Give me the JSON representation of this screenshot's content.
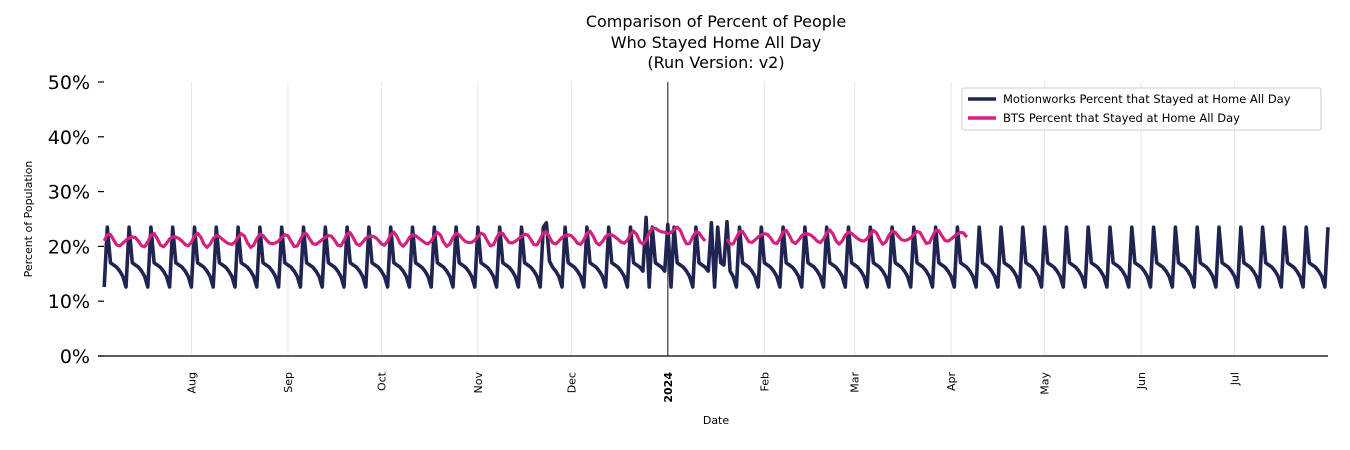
{
  "chart_data": {
    "type": "line",
    "title_lines": [
      "Comparison of Percent of People",
      "Who Stayed Home All Day",
      "(Run Version: v2)"
    ],
    "xlabel": "Date",
    "ylabel": "Percent of Population",
    "ylim": [
      0,
      50
    ],
    "yticks": [
      "0%",
      "10%",
      "20%",
      "30%",
      "40%",
      "50%"
    ],
    "xlim": [
      "2023-07-02",
      "2024-07-31"
    ],
    "xticks": [
      {
        "date": "2023-08-01",
        "label": "Aug",
        "bold": false
      },
      {
        "date": "2023-09-01",
        "label": "Sep",
        "bold": false
      },
      {
        "date": "2023-10-01",
        "label": "Oct",
        "bold": false
      },
      {
        "date": "2023-11-01",
        "label": "Nov",
        "bold": false
      },
      {
        "date": "2023-12-01",
        "label": "Dec",
        "bold": false
      },
      {
        "date": "2024-01-01",
        "label": "2024",
        "bold": true
      },
      {
        "date": "2024-02-01",
        "label": "Feb",
        "bold": false
      },
      {
        "date": "2024-03-01",
        "label": "Mar",
        "bold": false
      },
      {
        "date": "2024-04-01",
        "label": "Apr",
        "bold": false
      },
      {
        "date": "2024-05-01",
        "label": "May",
        "bold": false
      },
      {
        "date": "2024-06-01",
        "label": "Jun",
        "bold": false
      },
      {
        "date": "2024-07-01",
        "label": "Jul",
        "bold": false
      }
    ],
    "vline_date": "2024-01-01",
    "grid_x": true,
    "legend_position": "top-right",
    "series": [
      {
        "name": "Motionworks Percent that Stayed at Home All Day",
        "color": "#1f2451",
        "start": "2023-07-04",
        "end": "2024-07-31",
        "weekly_pattern": [
          23.5,
          17.0,
          16.6,
          16.2,
          15.5,
          14.5,
          12.6
        ],
        "first_peak": "2023-07-05",
        "anomalies": [
          {
            "date": "2023-11-23",
            "value": 24.3
          },
          {
            "date": "2023-11-24",
            "value": 17.3
          },
          {
            "date": "2023-12-25",
            "value": 25.3
          },
          {
            "date": "2024-01-01",
            "value": 24.0
          },
          {
            "date": "2024-01-15",
            "value": 24.3
          },
          {
            "date": "2024-01-20",
            "value": 24.5
          }
        ]
      },
      {
        "name": "BTS Percent that Stayed at Home All Day",
        "color": "#d3227e",
        "start": "2023-07-04",
        "end": "2024-04-06",
        "gap": [
          "2024-01-14",
          "2024-01-19"
        ],
        "level_start": 21.0,
        "level_end": 21.8,
        "oscillation": 1.0,
        "holiday_bump": {
          "date": "2023-12-31",
          "value": 23.5
        }
      }
    ]
  }
}
